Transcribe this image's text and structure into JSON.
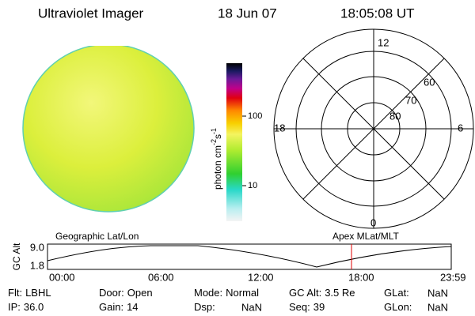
{
  "header": {
    "instrument": "Ultraviolet Imager",
    "date": "18 Jun 07",
    "time": "18:05:08 UT"
  },
  "colorbar": {
    "unit": "photon cm",
    "exp1": "-2",
    "unit2": "s",
    "exp2": "-1",
    "ticks": [
      "100",
      "10"
    ]
  },
  "polar": {
    "hours": [
      "12",
      "18",
      "6",
      "0"
    ],
    "latitudes": [
      "60",
      "70",
      "80"
    ]
  },
  "altitude": {
    "axis_label": "GC Alt",
    "ticks": [
      "9.0",
      "1.8"
    ],
    "left_label": "Geographic Lat/Lon",
    "right_label": "Apex MLat/MLT",
    "times": [
      "00:00",
      "06:00",
      "12:00",
      "18:00",
      "23:59"
    ]
  },
  "info": {
    "rows": [
      [
        {
          "label": "Flt:",
          "value": "LBHL"
        },
        {
          "label": "Door:",
          "value": "Open"
        },
        {
          "label": "Mode:",
          "value": "Normal"
        },
        {
          "label": "GC Alt:",
          "value": "3.5 Re"
        },
        {
          "label": "GLat:",
          "value": "NaN"
        }
      ],
      [
        {
          "label": "IP:",
          "value": "36.0"
        },
        {
          "label": "Gain:",
          "value": "14"
        },
        {
          "label": "Dsp:",
          "value": "NaN"
        },
        {
          "label": "Seq:",
          "value": "39"
        },
        {
          "label": "GLon:",
          "value": "NaN"
        }
      ]
    ]
  }
}
